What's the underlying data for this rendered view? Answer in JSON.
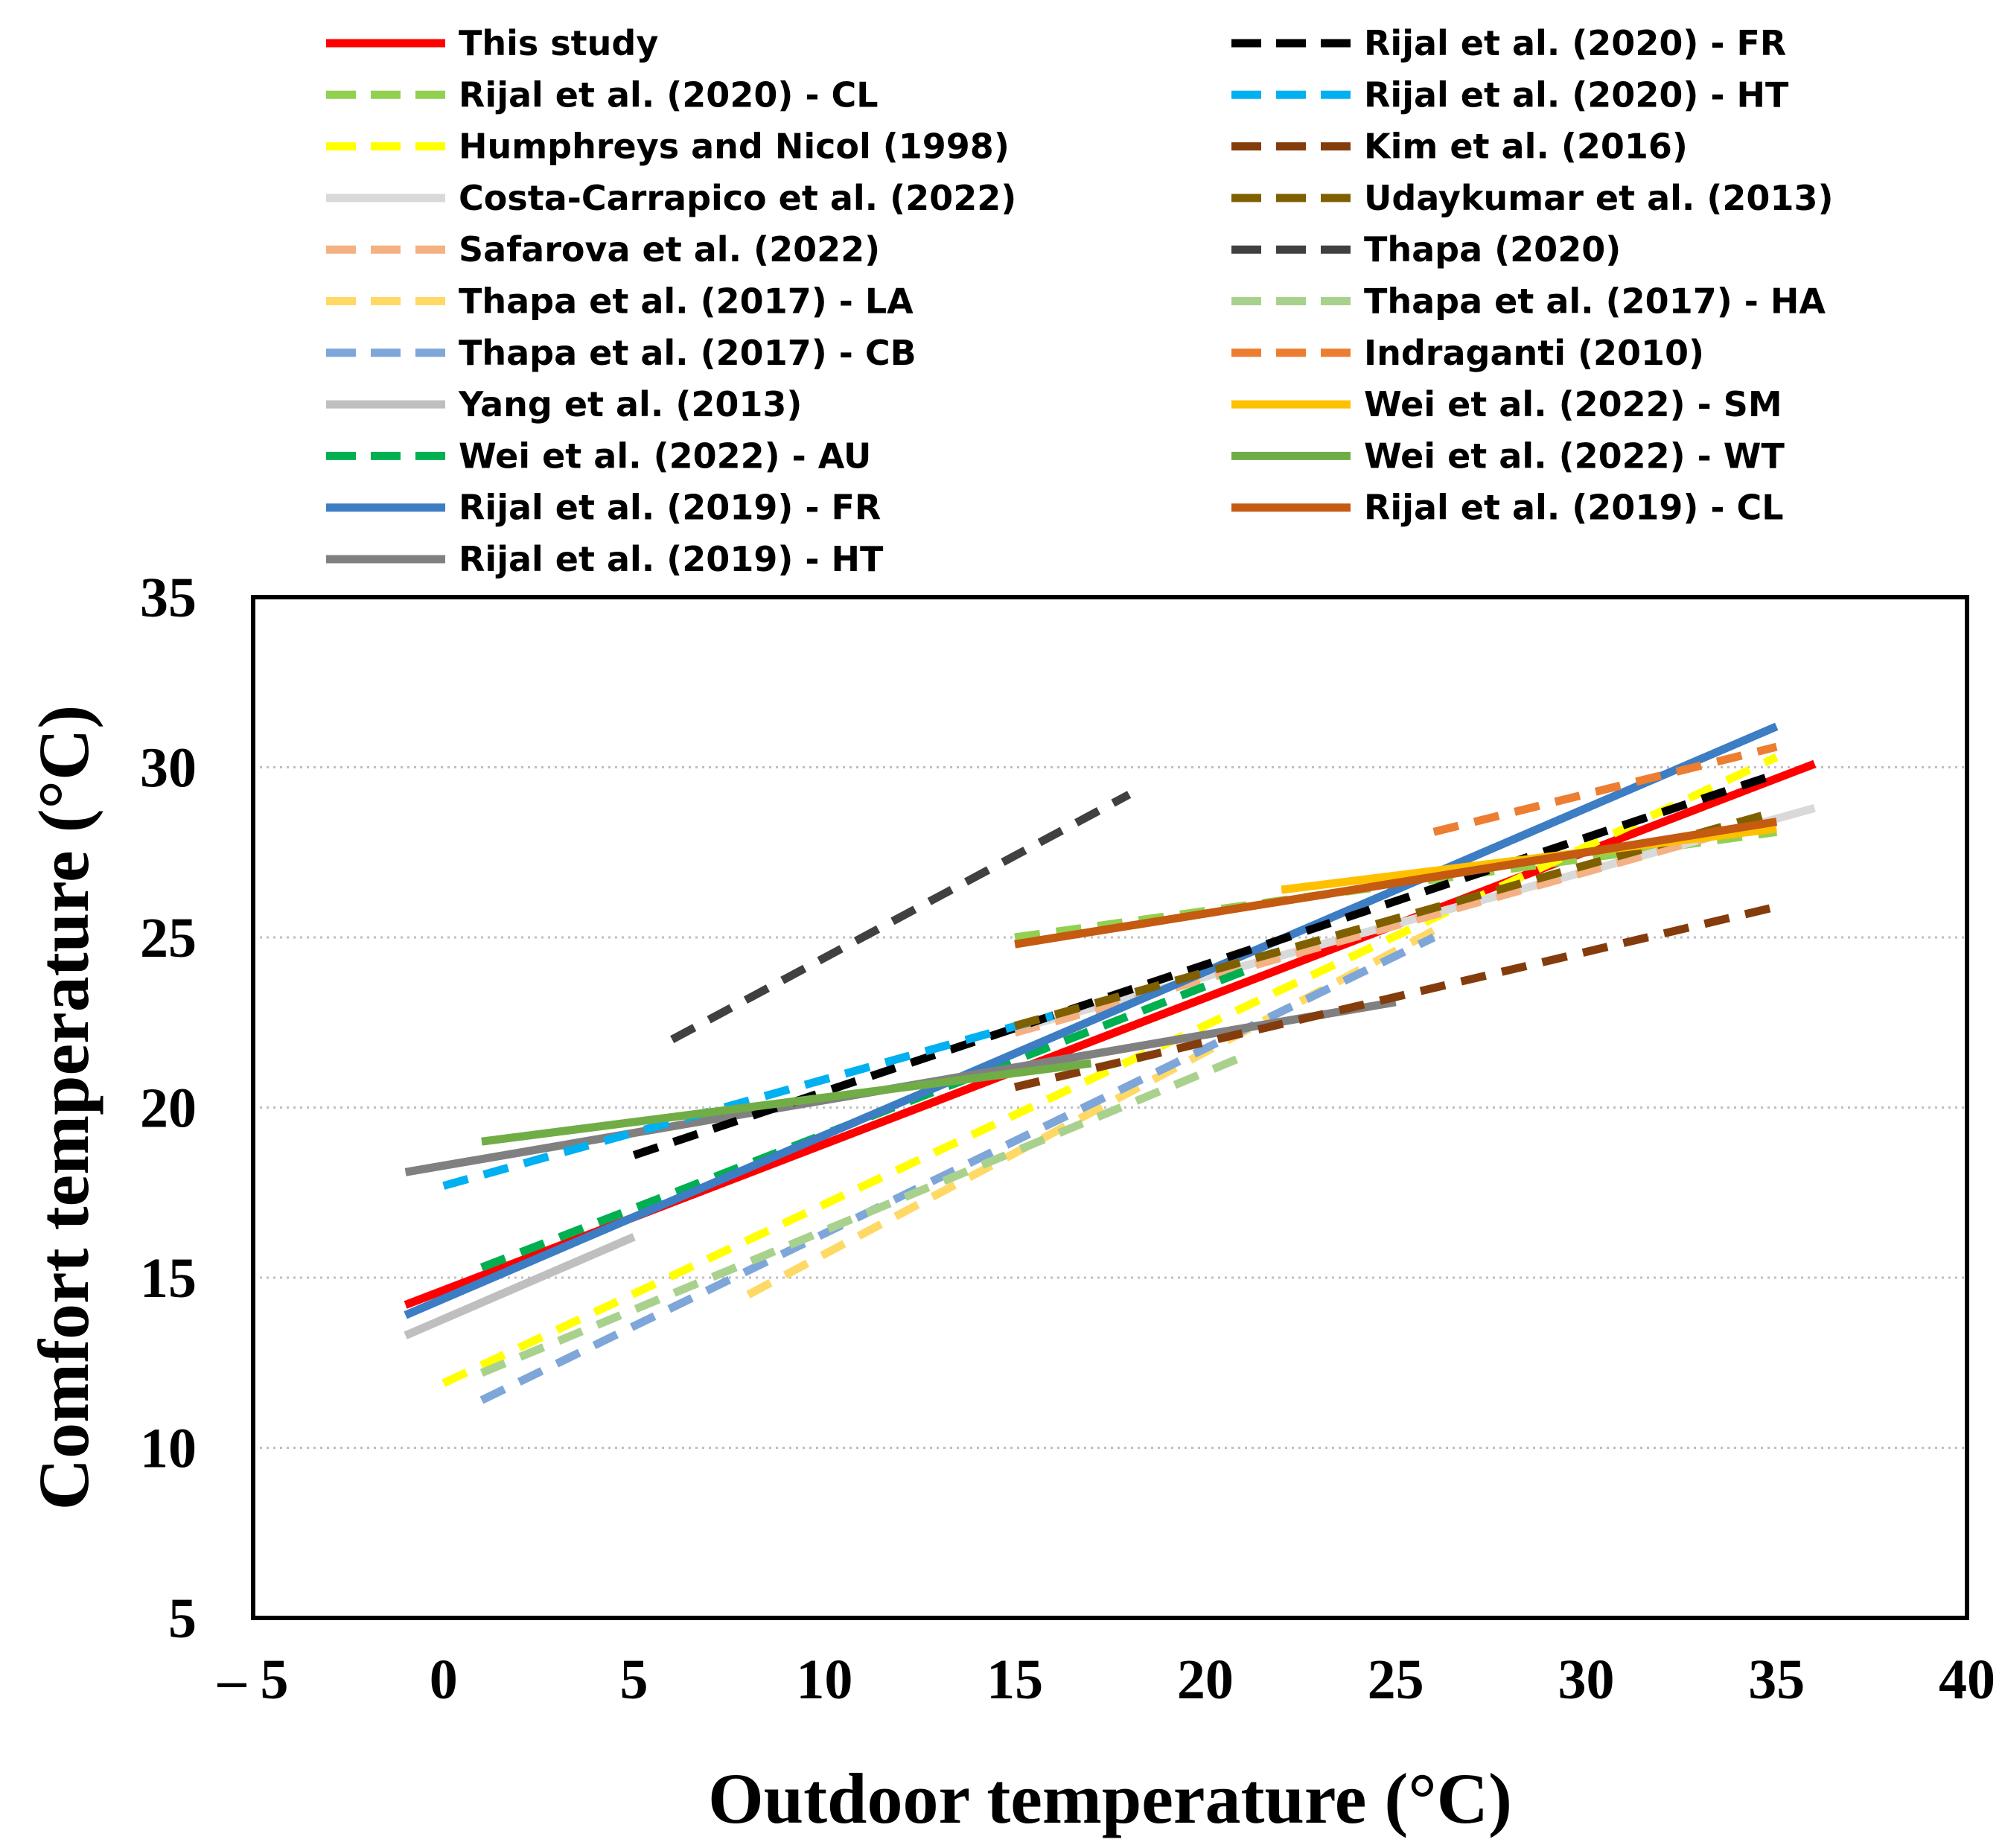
{
  "chart_data": {
    "type": "line",
    "title": "",
    "xlabel": "Outdoor temperature (°C)",
    "ylabel": "Comfort temperature (°C)",
    "xlim": [
      -5,
      40
    ],
    "ylim": [
      5,
      35
    ],
    "xticks": [
      -5,
      0,
      5,
      10,
      15,
      20,
      25,
      30,
      35,
      40
    ],
    "yticks": [
      5,
      10,
      15,
      20,
      25,
      30,
      35
    ],
    "xtick_labels": [
      "– 5",
      "0",
      "5",
      "10",
      "15",
      "20",
      "25",
      "30",
      "35",
      "40"
    ],
    "ytick_labels": [
      "5",
      "10",
      "15",
      "20",
      "25",
      "30",
      "35"
    ],
    "grid": "horizontal-dotted",
    "legend_position": "top",
    "series": [
      {
        "name": "This study",
        "color": "#FF0000",
        "dash": "solid",
        "x": [
          -1,
          36
        ],
        "y": [
          14.2,
          30.1
        ]
      },
      {
        "name": "Rijal et al. (2020) - CL",
        "color": "#92D050",
        "dash": "dashed",
        "x": [
          15,
          35
        ],
        "y": [
          25.0,
          28.1
        ]
      },
      {
        "name": "Humphreys and Nicol (1998)",
        "color": "#FFFF00",
        "dash": "dashed",
        "x": [
          0,
          35
        ],
        "y": [
          11.9,
          30.3
        ]
      },
      {
        "name": "Costa-Carrapico et al. (2022)",
        "color": "#D9D9D9",
        "dash": "solid",
        "x": [
          15,
          36
        ],
        "y": [
          22.3,
          28.8
        ]
      },
      {
        "name": "Safarova et al. (2022)",
        "color": "#F4B183",
        "dash": "dashed",
        "x": [
          15,
          35
        ],
        "y": [
          22.2,
          28.5
        ]
      },
      {
        "name": "Thapa et al. (2017) - LA",
        "color": "#FFD966",
        "dash": "dashed",
        "x": [
          8,
          26
        ],
        "y": [
          14.5,
          25.2
        ]
      },
      {
        "name": "Thapa et al. (2017) - CB",
        "color": "#7EA6D9",
        "dash": "dashed",
        "x": [
          1,
          26
        ],
        "y": [
          11.4,
          25.0
        ]
      },
      {
        "name": "Yang et al. (2013)",
        "color": "#BFBFBF",
        "dash": "solid",
        "x": [
          -1,
          5
        ],
        "y": [
          13.3,
          16.2
        ]
      },
      {
        "name": "Wei et al. (2022) - AU",
        "color": "#00B050",
        "dash": "dashed",
        "x": [
          1,
          21
        ],
        "y": [
          15.3,
          24.0
        ]
      },
      {
        "name": "Rijal et al. (2019) - FR",
        "color": "#3C7DC4",
        "dash": "solid",
        "x": [
          -1,
          35
        ],
        "y": [
          13.9,
          31.2
        ]
      },
      {
        "name": "Rijal et al. (2019) - HT",
        "color": "#808080",
        "dash": "solid",
        "x": [
          -1,
          25
        ],
        "y": [
          18.1,
          23.1
        ]
      },
      {
        "name": "Rijal et al. (2020) - FR",
        "color": "#000000",
        "dash": "dashed",
        "x": [
          5,
          35
        ],
        "y": [
          18.6,
          29.8
        ]
      },
      {
        "name": "Rijal et al. (2020) - HT",
        "color": "#00B0F0",
        "dash": "dashed",
        "x": [
          0,
          16
        ],
        "y": [
          17.7,
          22.7
        ]
      },
      {
        "name": "Kim et al. (2016)",
        "color": "#843C0C",
        "dash": "dashed",
        "x": [
          15,
          35
        ],
        "y": [
          20.6,
          25.9
        ]
      },
      {
        "name": "Udaykumar et al. (2013)",
        "color": "#7F6000",
        "dash": "dashed",
        "x": [
          15,
          35
        ],
        "y": [
          22.4,
          28.7
        ]
      },
      {
        "name": "Thapa (2020)",
        "color": "#404040",
        "dash": "dashed",
        "x": [
          6,
          18
        ],
        "y": [
          22.0,
          29.2
        ]
      },
      {
        "name": "Thapa et al. (2017) - HA",
        "color": "#A9D18E",
        "dash": "dashed",
        "x": [
          1,
          21
        ],
        "y": [
          12.2,
          21.5
        ]
      },
      {
        "name": "Indraganti (2010)",
        "color": "#ED7D31",
        "dash": "dashed",
        "x": [
          26,
          35
        ],
        "y": [
          28.1,
          30.6
        ]
      },
      {
        "name": "Wei et al. (2022) - SM",
        "color": "#FFC000",
        "dash": "solid",
        "x": [
          22,
          35
        ],
        "y": [
          26.4,
          28.2
        ]
      },
      {
        "name": "Wei et al. (2022) - WT",
        "color": "#70AD47",
        "dash": "solid",
        "x": [
          1,
          17
        ],
        "y": [
          19.0,
          21.3
        ]
      },
      {
        "name": "Rijal et al. (2019) - CL",
        "color": "#C55A11",
        "dash": "solid",
        "x": [
          15,
          35
        ],
        "y": [
          24.8,
          28.4
        ]
      }
    ]
  }
}
